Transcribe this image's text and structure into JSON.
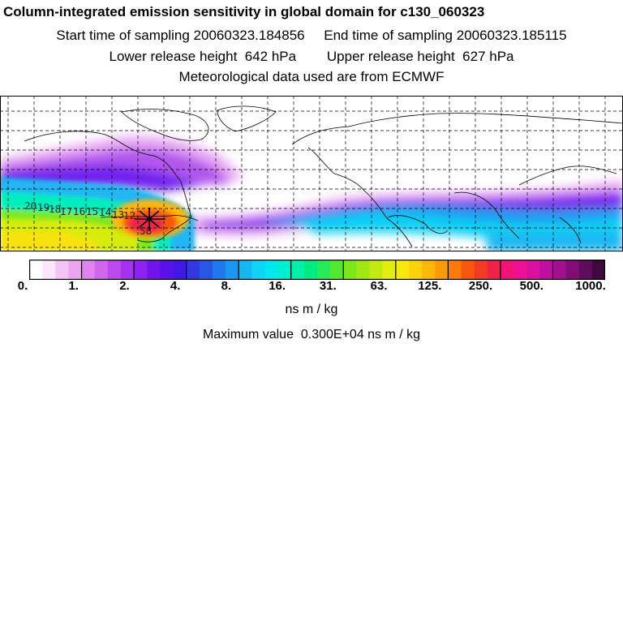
{
  "header": {
    "title": "Column-integrated emission sensitivity in global domain for c130_060323",
    "start": "Start time of sampling 20060323.184856",
    "end": "End time of sampling 20060323.185115",
    "lower": "Lower release height  642 hPa",
    "upper": "Upper release height  627 hPa",
    "met": "Meteorological data used are from ECMWF"
  },
  "map": {
    "day_labels": [
      "20",
      "19",
      "18",
      "17",
      "16",
      "15",
      "14",
      "13",
      "12"
    ],
    "release_label": "58",
    "palette": [
      "#ffffff",
      "#fde6fb",
      "#f6c3f5",
      "#eea4f0",
      "#e183ee",
      "#d066ec",
      "#bb49ec",
      "#a433ef",
      "#8d22f1",
      "#7213ee",
      "#5a10e8",
      "#4318e4",
      "#3336e3",
      "#2a56e6",
      "#2177ec",
      "#1a98f0",
      "#16b6f3",
      "#0fd4f5",
      "#00e8ee",
      "#00eed0",
      "#00f0aa",
      "#00ec80",
      "#28ea58",
      "#52e832",
      "#7ce81c",
      "#a0e814",
      "#c3ea10",
      "#e3ee10",
      "#f7e80e",
      "#fdd20a",
      "#fdb808",
      "#fd9a08",
      "#fb7a0a",
      "#f8560e",
      "#f33a23",
      "#f0224a",
      "#f01478",
      "#ee1097",
      "#d910a0",
      "#bd10a0",
      "#a0108f",
      "#820c78",
      "#5f0c5c",
      "#3f083e"
    ]
  },
  "colorbar": {
    "ticks": [
      "0.",
      "1.",
      "2.",
      "4.",
      "8.",
      "16.",
      "31.",
      "63.",
      "125.",
      "250.",
      "500.",
      "1000."
    ],
    "unit": "ns m / kg",
    "max_value": "Maximum value  0.300E+04 ns m / kg"
  }
}
